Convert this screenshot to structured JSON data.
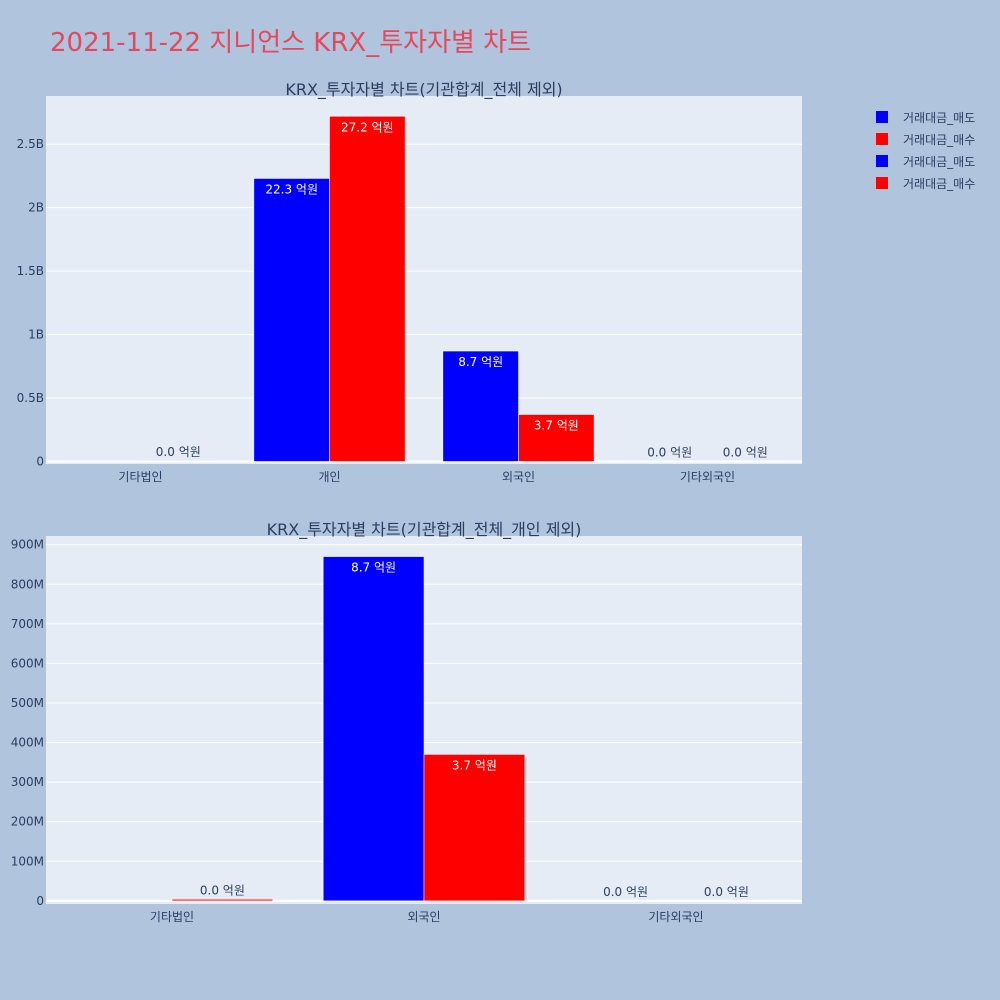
{
  "title": "2021-11-22 지니언스 KRX_투자자별 차트",
  "colors": {
    "sell": "#0000ff",
    "buy": "#ff0000",
    "plot_bg": "#e5ecf6",
    "page_bg": "#b0c4de",
    "text": "#2a3f5f"
  },
  "legend": [
    {
      "name": "거래대금_매도",
      "color": "#0000ff"
    },
    {
      "name": "거래대금_매수",
      "color": "#ff0000"
    },
    {
      "name": "거래대금_매도",
      "color": "#0000ff"
    },
    {
      "name": "거래대금_매수",
      "color": "#ff0000"
    }
  ],
  "chart_data": [
    {
      "type": "bar",
      "title": "KRX_투자자별 차트(기관합계_전체 제외)",
      "categories": [
        "기타법인",
        "개인",
        "외국인",
        "기타외국인"
      ],
      "series": [
        {
          "name": "거래대금_매도",
          "values": [
            0,
            2230000000,
            870000000,
            0
          ],
          "labels": [
            "",
            "22.3 억원",
            "8.7 억원",
            "0.0 억원"
          ]
        },
        {
          "name": "거래대금_매수",
          "values": [
            4000000,
            2720000000,
            370000000,
            0
          ],
          "labels": [
            "0.0 억원",
            "27.2 억원",
            "3.7 억원",
            "0.0 억원"
          ]
        }
      ],
      "yticks": [
        0,
        500000000,
        1000000000,
        1500000000,
        2000000000,
        2500000000
      ],
      "ytick_labels": [
        "0",
        "0.5B",
        "1B",
        "1.5B",
        "2B",
        "2.5B"
      ],
      "ylim": [
        -20000000,
        2880000000
      ],
      "grid": true
    },
    {
      "type": "bar",
      "title": "KRX_투자자별 차트(기관합계_전체_개인 제외)",
      "categories": [
        "기타법인",
        "외국인",
        "기타외국인"
      ],
      "series": [
        {
          "name": "거래대금_매도",
          "values": [
            0,
            870000000,
            0
          ],
          "labels": [
            "",
            "8.7 억원",
            "0.0 억원"
          ]
        },
        {
          "name": "거래대금_매수",
          "values": [
            4000000,
            370000000,
            0
          ],
          "labels": [
            "0.0 억원",
            "3.7 억원",
            "0.0 억원"
          ]
        }
      ],
      "yticks": [
        0,
        100000000,
        200000000,
        300000000,
        400000000,
        500000000,
        600000000,
        700000000,
        800000000,
        900000000
      ],
      "ytick_labels": [
        "0",
        "100M",
        "200M",
        "300M",
        "400M",
        "500M",
        "600M",
        "700M",
        "800M",
        "900M"
      ],
      "ylim": [
        -8000000,
        922000000
      ],
      "grid": true
    }
  ]
}
